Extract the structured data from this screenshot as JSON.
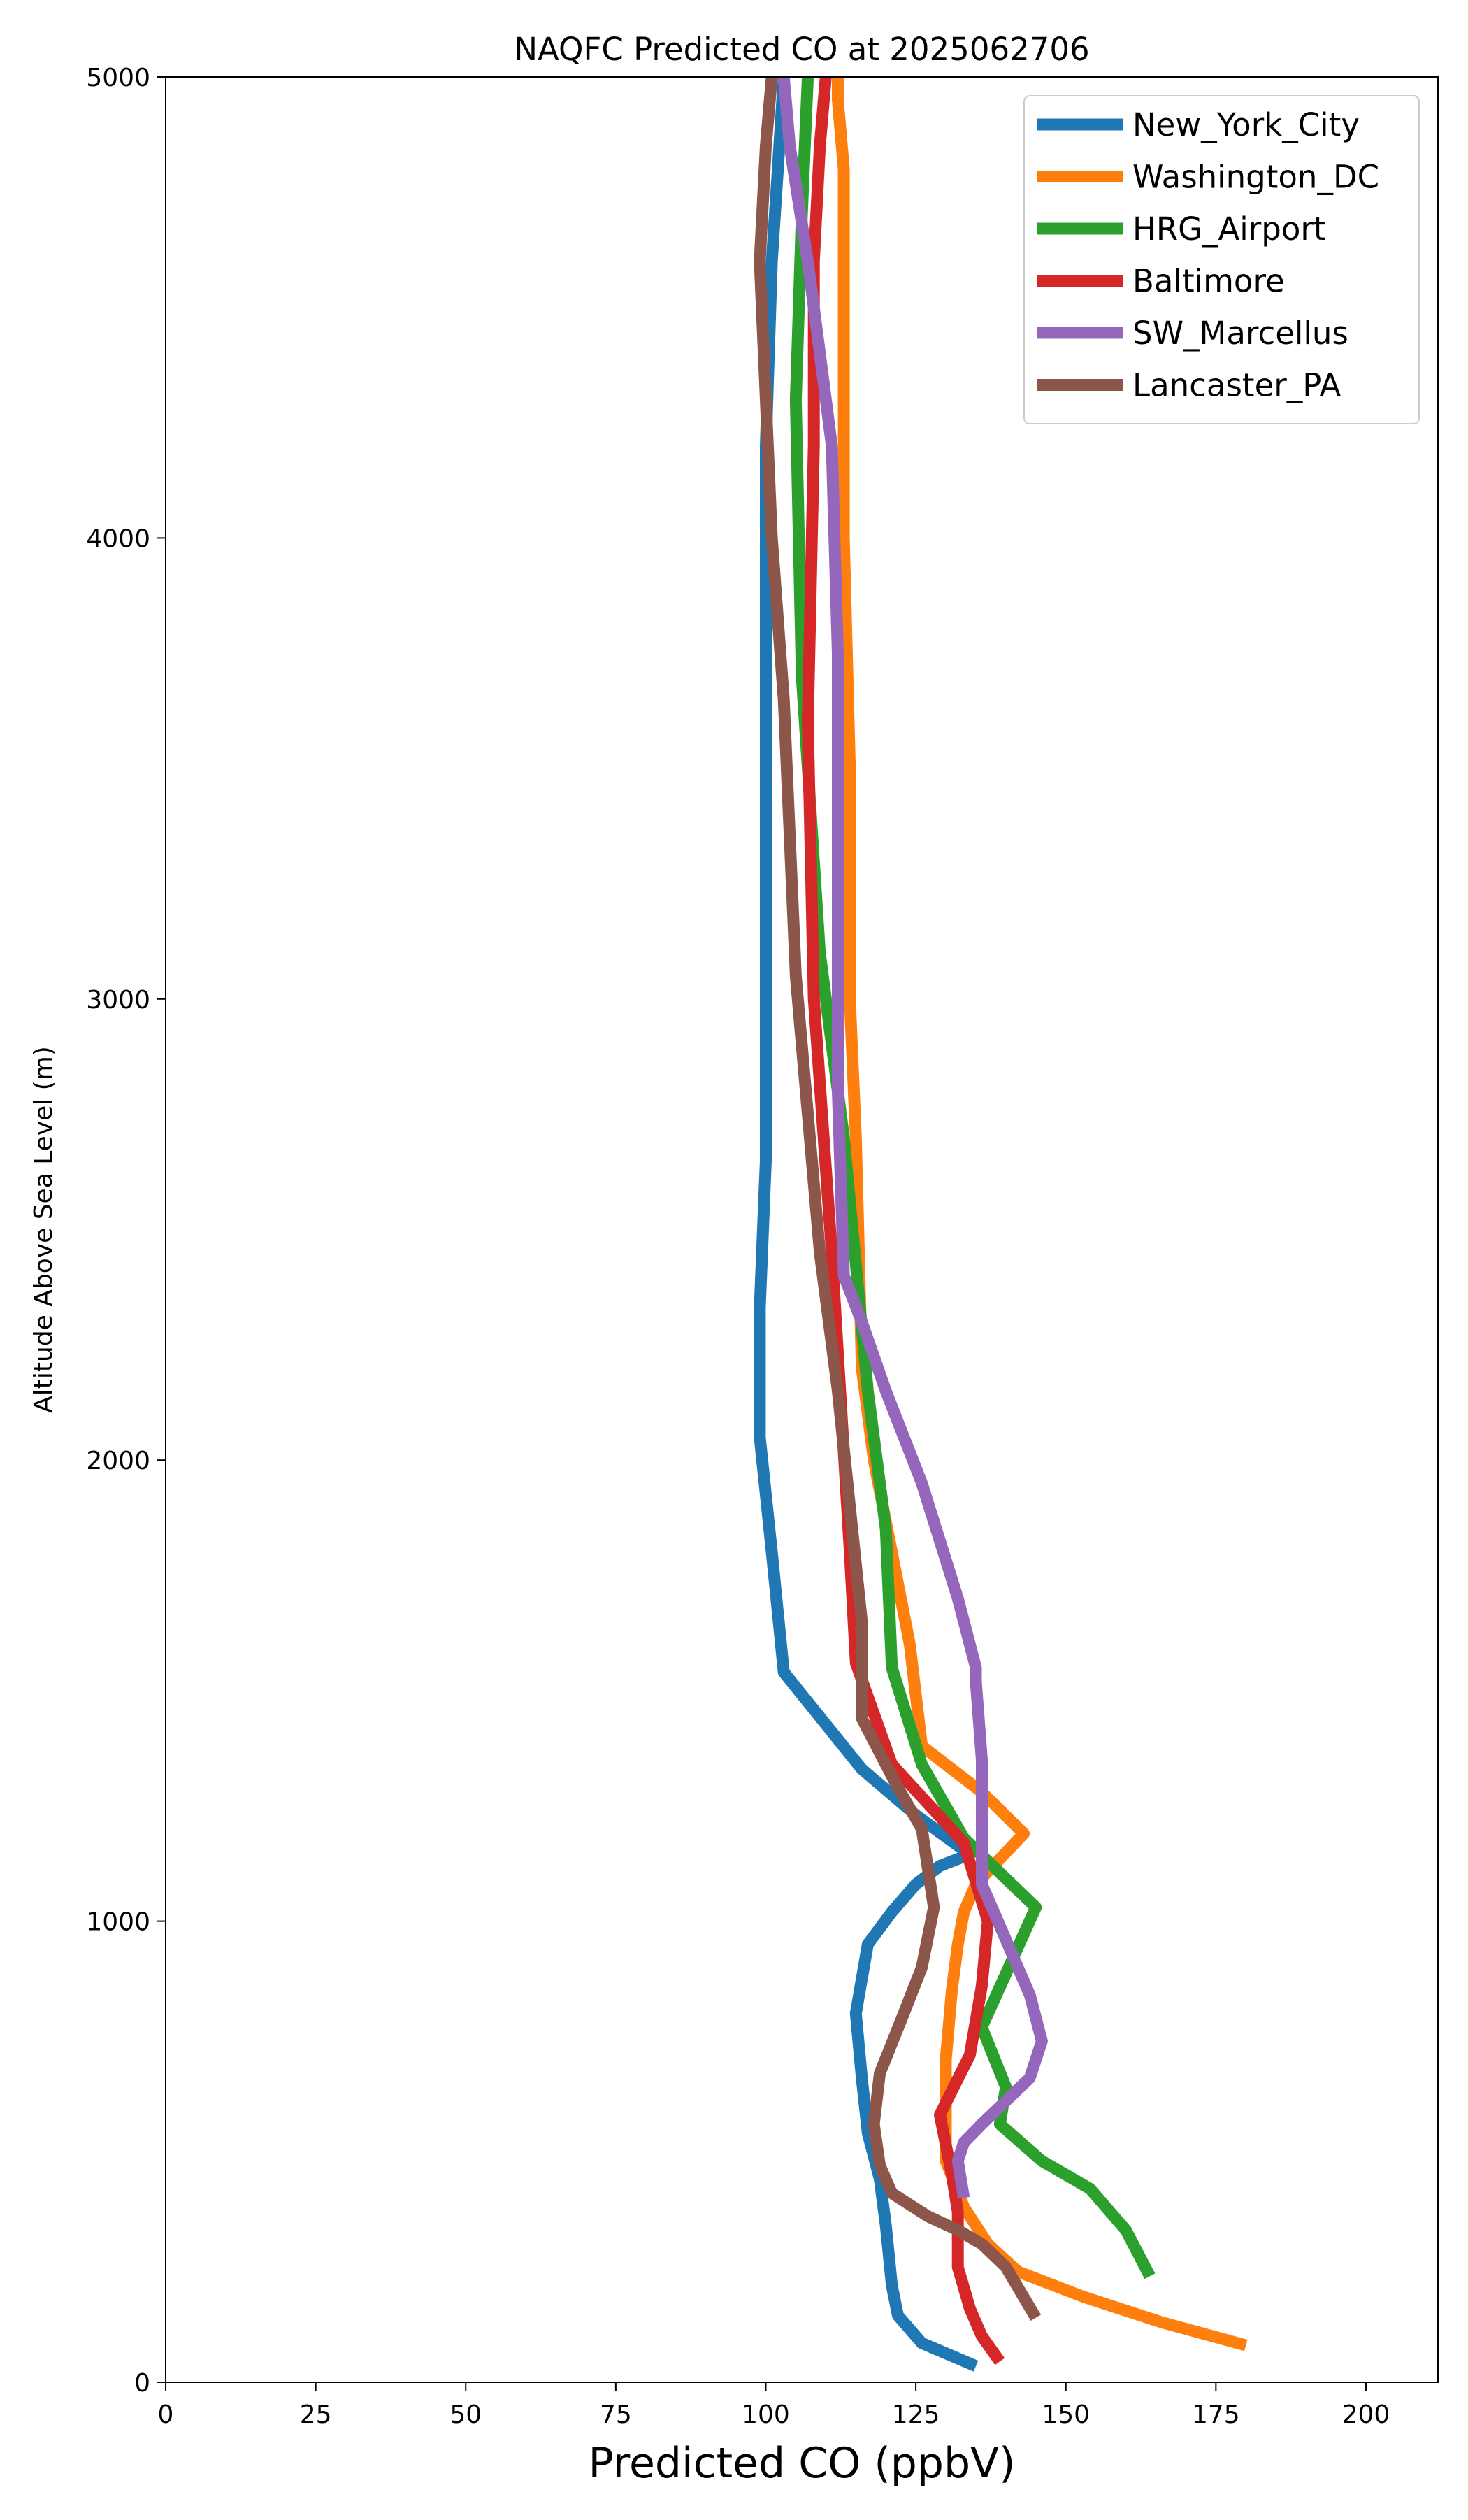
{
  "chart_data": {
    "type": "line",
    "title": "NAQFC Predicted CO at 2025062706",
    "xlabel": "Predicted CO (ppbV)",
    "ylabel": "Altitude Above Sea Level (m)",
    "xlim": [
      0,
      212
    ],
    "ylim": [
      0,
      5000
    ],
    "xticks": [
      0,
      25,
      50,
      75,
      100,
      125,
      150,
      175,
      200
    ],
    "yticks": [
      0,
      1000,
      2000,
      3000,
      4000,
      5000
    ],
    "xtick_labels": [
      "0",
      "25",
      "50",
      "75",
      "100",
      "125",
      "150",
      "175",
      "200"
    ],
    "ytick_labels": [
      "0",
      "1000",
      "2000",
      "3000",
      "4000",
      "5000"
    ],
    "grid": false,
    "legend_position": "top-right",
    "series": [
      {
        "name": "New_York_City",
        "color": "#1f77b4",
        "x": [
          135,
          126,
          122,
          121,
          120,
          119,
          117,
          116,
          115,
          117,
          121,
          125,
          129,
          134,
          125,
          116,
          103,
          101,
          99,
          99,
          100,
          100,
          100,
          100,
          100,
          101,
          102,
          103
        ],
        "y": [
          35,
          85,
          145,
          210,
          340,
          440,
          540,
          660,
          800,
          950,
          1020,
          1080,
          1120,
          1145,
          1230,
          1330,
          1540,
          1800,
          2050,
          2330,
          2650,
          3000,
          3400,
          3800,
          4200,
          4600,
          4800,
          5000
        ]
      },
      {
        "name": "Washington_DC",
        "color": "#ff7f0e",
        "x": [
          180,
          166,
          153,
          142,
          137,
          133,
          130,
          130,
          130,
          131,
          132,
          133,
          135,
          143,
          136,
          126,
          124,
          121,
          118,
          116,
          115,
          114,
          114,
          113,
          113,
          113,
          112,
          112
        ],
        "y": [
          80,
          130,
          185,
          240,
          300,
          380,
          480,
          600,
          700,
          850,
          950,
          1020,
          1080,
          1190,
          1280,
          1380,
          1600,
          1800,
          2000,
          2200,
          2700,
          3000,
          3500,
          4000,
          4400,
          4800,
          4950,
          5000
        ]
      },
      {
        "name": "HRG_Airport",
        "color": "#2ca02c",
        "x": [
          164,
          162,
          160,
          154,
          146,
          139,
          140,
          136,
          145,
          133,
          126,
          121,
          120,
          117,
          113,
          109,
          106,
          105,
          106,
          107
        ],
        "y": [
          230,
          280,
          330,
          420,
          480,
          560,
          640,
          770,
          1030,
          1180,
          1340,
          1550,
          1850,
          2150,
          2700,
          3100,
          3700,
          4300,
          4700,
          5000
        ]
      },
      {
        "name": "Baltimore",
        "color": "#d62728",
        "x": [
          139,
          136,
          134,
          132,
          132,
          131,
          129,
          134,
          136,
          137,
          133,
          121,
          115,
          114,
          111,
          108,
          107,
          108,
          108,
          109,
          110
        ],
        "y": [
          45,
          100,
          160,
          250,
          370,
          450,
          580,
          710,
          860,
          1000,
          1170,
          1340,
          1560,
          1800,
          2450,
          3000,
          3600,
          4200,
          4600,
          4850,
          5000
        ]
      },
      {
        "name": "SW_Marcellus",
        "color": "#9467bd",
        "x": [
          133,
          132,
          133,
          136,
          140,
          144,
          146,
          144,
          138,
          136,
          136,
          136,
          135,
          135,
          132,
          126,
          120,
          116,
          113,
          112,
          112,
          112,
          111,
          109,
          107,
          104,
          103
        ],
        "y": [
          400,
          480,
          520,
          560,
          610,
          660,
          740,
          840,
          1020,
          1080,
          1170,
          1350,
          1520,
          1550,
          1700,
          1950,
          2150,
          2300,
          2400,
          2800,
          3300,
          3750,
          4200,
          4400,
          4600,
          4850,
          5000
        ]
      },
      {
        "name": "Lancaster_PA",
        "color": "#8c564b",
        "x": [
          145,
          140,
          136,
          132,
          127,
          121,
          119,
          118,
          119,
          123,
          126,
          128,
          126,
          122,
          116,
          116,
          112,
          109,
          107,
          105,
          104,
          103,
          101,
          100,
          99,
          100,
          101
        ],
        "y": [
          140,
          250,
          300,
          330,
          360,
          410,
          470,
          560,
          670,
          800,
          900,
          1030,
          1200,
          1290,
          1440,
          1650,
          2150,
          2450,
          2750,
          3050,
          3350,
          3650,
          4000,
          4300,
          4600,
          4850,
          5000
        ]
      }
    ]
  }
}
